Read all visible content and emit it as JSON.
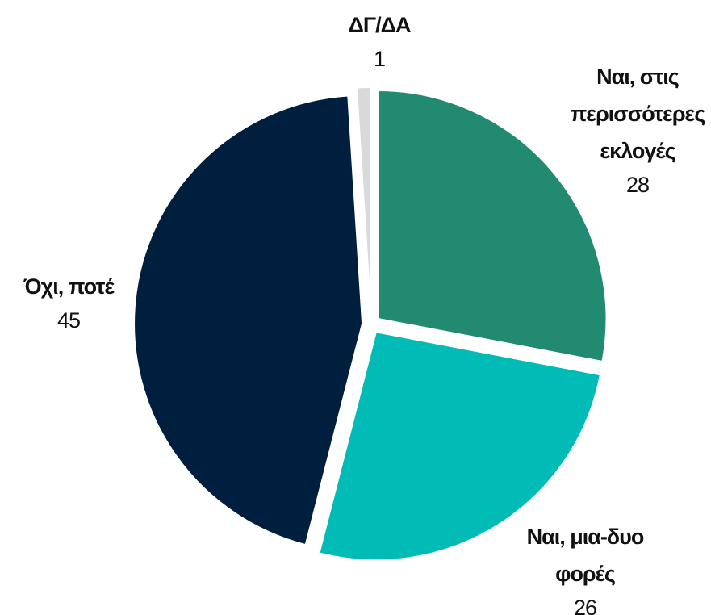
{
  "chart_data": {
    "type": "pie",
    "categories": [
      "Ναι, στις περισσότερες εκλογές",
      "Ναι, μια-δυο φορές",
      "Όχι, ποτέ",
      "ΔΓ/ΔΑ"
    ],
    "values": [
      28,
      26,
      45,
      1
    ],
    "colors": [
      "#218a70",
      "#00bbb6",
      "#001e3e",
      "#d9d9d9"
    ]
  }
}
